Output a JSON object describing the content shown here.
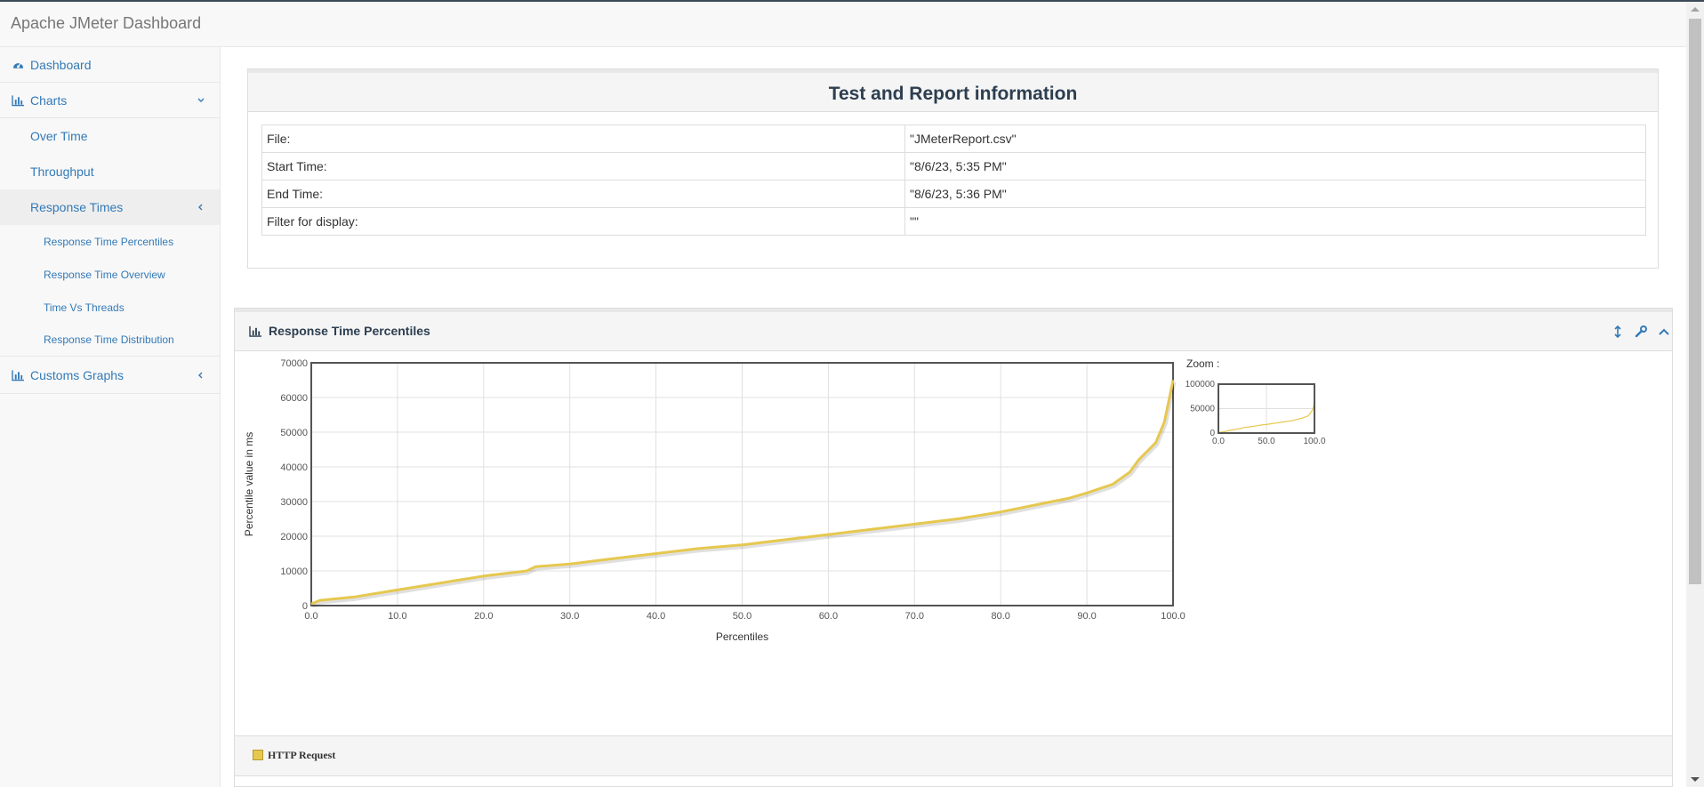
{
  "app": {
    "title": "Apache JMeter Dashboard"
  },
  "sidebar": {
    "items": [
      {
        "label": "Dashboard",
        "icon": "dashboard-icon"
      },
      {
        "label": "Charts",
        "icon": "bar-chart-icon",
        "expanded": true
      },
      {
        "label": "Over Time"
      },
      {
        "label": "Throughput"
      },
      {
        "label": "Response Times",
        "active": true
      },
      {
        "label": "Response Time Percentiles"
      },
      {
        "label": "Response Time Overview"
      },
      {
        "label": "Time Vs Threads"
      },
      {
        "label": "Response Time Distribution"
      },
      {
        "label": "Customs Graphs",
        "icon": "bar-chart-icon"
      }
    ]
  },
  "info_panel": {
    "title": "Test and Report information",
    "rows": [
      {
        "key": "File:",
        "value": "\"JMeterReport.csv\""
      },
      {
        "key": "Start Time:",
        "value": "\"8/6/23, 5:35 PM\""
      },
      {
        "key": "End Time:",
        "value": "\"8/6/23, 5:36 PM\""
      },
      {
        "key": "Filter for display:",
        "value": "\"\""
      }
    ]
  },
  "chart_panel": {
    "title": "Response Time Percentiles",
    "zoom_label": "Zoom :",
    "legend": "HTTP Request",
    "series_color": "#e6c84f"
  },
  "chart_data": {
    "type": "line",
    "xlabel": "Percentiles",
    "ylabel": "Percentile value in ms",
    "xlim": [
      0,
      100
    ],
    "ylim": [
      0,
      70000
    ],
    "x_ticks": [
      "0.0",
      "10.0",
      "20.0",
      "30.0",
      "40.0",
      "50.0",
      "60.0",
      "70.0",
      "80.0",
      "90.0",
      "100.0"
    ],
    "y_ticks": [
      "0",
      "10000",
      "20000",
      "30000",
      "40000",
      "50000",
      "60000",
      "70000"
    ],
    "grid": true,
    "series": [
      {
        "name": "HTTP Request",
        "x": [
          0,
          1,
          5,
          10,
          15,
          20,
          25,
          26,
          30,
          35,
          40,
          45,
          50,
          55,
          60,
          65,
          70,
          75,
          80,
          85,
          88,
          90,
          93,
          95,
          96,
          97,
          98,
          99,
          99.5,
          100
        ],
        "y": [
          500,
          1500,
          2500,
          4500,
          6500,
          8500,
          10000,
          11200,
          12000,
          13500,
          15000,
          16500,
          17500,
          19000,
          20500,
          22000,
          23500,
          25000,
          27000,
          29500,
          31000,
          32500,
          35000,
          38500,
          42000,
          44500,
          47000,
          53000,
          59000,
          65000
        ]
      }
    ],
    "zoom": {
      "ylim": [
        0,
        100000
      ],
      "y_ticks": [
        "0",
        "50000",
        "100000"
      ],
      "x_ticks": [
        "0.0",
        "50.0",
        "100.0"
      ]
    }
  }
}
